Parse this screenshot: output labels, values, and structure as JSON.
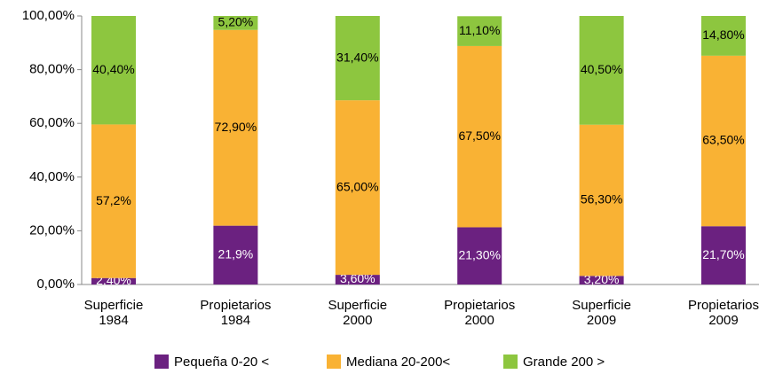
{
  "chart_data": {
    "type": "stacked_bar",
    "categories": [
      "Superficie 1984",
      "Propietarios 1984",
      "Superficie 2000",
      "Propietarios 2000",
      "Superficie 2009",
      "Propietarios 2009"
    ],
    "series": [
      {
        "name": "Pequeña 0-20 <",
        "color": "#6b2180",
        "label_color": "#ffffff",
        "values": [
          2.4,
          21.9,
          3.6,
          21.3,
          3.2,
          21.7
        ],
        "value_labels": [
          "2,40%",
          "21,9%",
          "3,60%",
          "21,30%",
          "3,20%",
          "21,70%"
        ]
      },
      {
        "name": "Mediana 20-200<",
        "color": "#f9b234",
        "label_color": "#000000",
        "values": [
          57.2,
          72.9,
          65.0,
          67.5,
          56.3,
          63.5
        ],
        "value_labels": [
          "57,2%",
          "72,90%",
          "65,00%",
          "67,50%",
          "56,30%",
          "63,50%"
        ]
      },
      {
        "name": "Grande 200 >",
        "color": "#8dc63f",
        "label_color": "#000000",
        "values": [
          40.4,
          5.2,
          31.4,
          11.1,
          40.5,
          14.8
        ],
        "value_labels": [
          "40,40%",
          "5,20%",
          "31,40%",
          "11,10%",
          "40,50%",
          "14,80%"
        ]
      }
    ],
    "ylim": [
      0,
      100
    ],
    "yticks": [
      {
        "value": 0,
        "label": "0,00%"
      },
      {
        "value": 20,
        "label": "20,00%"
      },
      {
        "value": 40,
        "label": "40,00%"
      },
      {
        "value": 60,
        "label": "60,00%"
      },
      {
        "value": 80,
        "label": "80,00%"
      },
      {
        "value": 100,
        "label": "100,00%"
      }
    ],
    "grid": false,
    "legend": "bottom"
  }
}
